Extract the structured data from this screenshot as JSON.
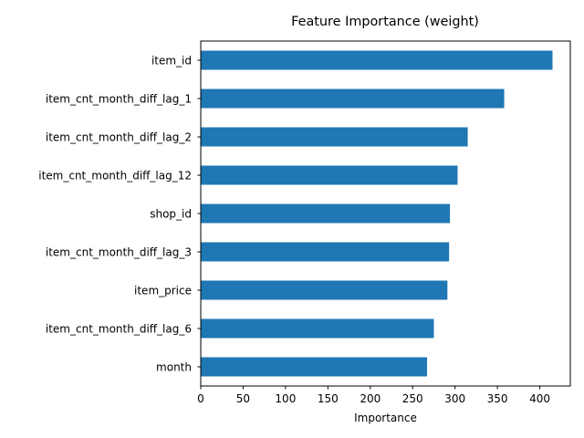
{
  "chart_data": {
    "type": "bar",
    "orientation": "horizontal",
    "title": "Feature Importance (weight)",
    "xlabel": "Importance",
    "ylabel": "",
    "categories": [
      "item_id",
      "item_cnt_month_diff_lag_1",
      "item_cnt_month_diff_lag_2",
      "item_cnt_month_diff_lag_12",
      "shop_id",
      "item_cnt_month_diff_lag_3",
      "item_price",
      "item_cnt_month_diff_lag_6",
      "month"
    ],
    "values": [
      415,
      358,
      315,
      303,
      294,
      293,
      291,
      275,
      267
    ],
    "xlim": [
      0,
      436
    ],
    "xticks": [
      0,
      50,
      100,
      150,
      200,
      250,
      300,
      350,
      400
    ],
    "bar_color": "#1f77b4",
    "grid": false
  }
}
